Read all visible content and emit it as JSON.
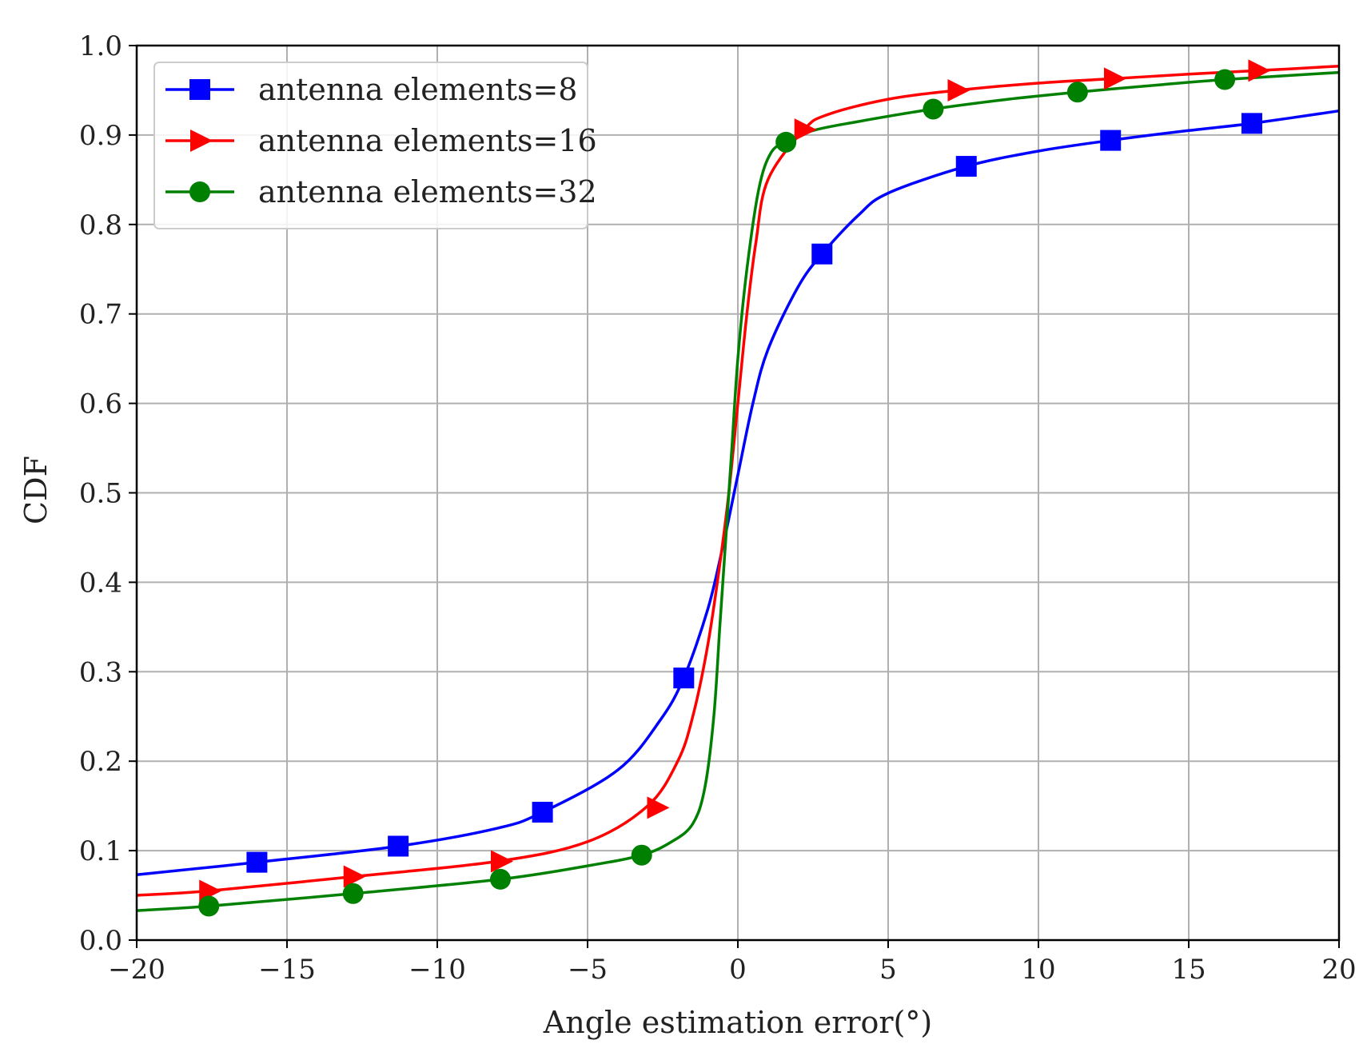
{
  "chart_data": {
    "type": "line",
    "title": "",
    "xlabel": "Angle estimation error(°)",
    "ylabel": "CDF",
    "xlim": [
      -20,
      20
    ],
    "ylim": [
      0.0,
      1.0
    ],
    "xticks": [
      -20,
      -15,
      -10,
      -5,
      0,
      5,
      10,
      15,
      20
    ],
    "xtick_labels": [
      "−20",
      "−15",
      "−10",
      "−5",
      "0",
      "5",
      "10",
      "15",
      "20"
    ],
    "yticks": [
      0.0,
      0.1,
      0.2,
      0.3,
      0.4,
      0.5,
      0.6,
      0.7,
      0.8,
      0.9,
      1.0
    ],
    "ytick_labels": [
      "0.0",
      "0.1",
      "0.2",
      "0.3",
      "0.4",
      "0.5",
      "0.6",
      "0.7",
      "0.8",
      "0.9",
      "1.0"
    ],
    "grid": true,
    "legend_position": "top-left",
    "series": [
      {
        "name": "antenna elements=8",
        "color": "#0000ff",
        "marker": "square",
        "x": [
          -20,
          -16,
          -11.3,
          -8,
          -6.5,
          -4,
          -2.6,
          -1.8,
          -1,
          -0.5,
          0,
          0.5,
          1,
          2,
          2.8,
          4,
          5,
          7.6,
          10,
          12.4,
          15,
          17.1,
          20
        ],
        "y": [
          0.073,
          0.087,
          0.105,
          0.125,
          0.143,
          0.19,
          0.245,
          0.293,
          0.37,
          0.44,
          0.52,
          0.6,
          0.66,
          0.73,
          0.767,
          0.81,
          0.835,
          0.865,
          0.882,
          0.894,
          0.905,
          0.913,
          0.927
        ],
        "marker_x": [
          -16,
          -11.3,
          -6.5,
          -1.8,
          2.8,
          7.6,
          12.4,
          17.1
        ],
        "marker_y": [
          0.087,
          0.105,
          0.143,
          0.293,
          0.767,
          0.865,
          0.894,
          0.913
        ]
      },
      {
        "name": "antenna elements=16",
        "color": "#ff0000",
        "marker": "triangle-right",
        "x": [
          -20,
          -17.6,
          -12.8,
          -8,
          -5,
          -3,
          -2,
          -1.5,
          -1,
          -0.6,
          -0.3,
          0,
          0.3,
          0.6,
          1,
          2.2,
          3,
          5,
          7.3,
          10,
          12.5,
          15,
          17.3,
          20
        ],
        "y": [
          0.05,
          0.055,
          0.071,
          0.088,
          0.11,
          0.15,
          0.2,
          0.25,
          0.33,
          0.42,
          0.5,
          0.6,
          0.7,
          0.78,
          0.85,
          0.906,
          0.923,
          0.94,
          0.95,
          0.958,
          0.963,
          0.968,
          0.972,
          0.977
        ],
        "marker_x": [
          -17.6,
          -12.8,
          -7.9,
          -2.7,
          2.2,
          7.3,
          12.5,
          17.3
        ],
        "marker_y": [
          0.055,
          0.071,
          0.088,
          0.148,
          0.906,
          0.95,
          0.963,
          0.972
        ]
      },
      {
        "name": "antenna elements=32",
        "color": "#008000",
        "marker": "circle",
        "x": [
          -20,
          -17.6,
          -12.8,
          -7.9,
          -5,
          -3.2,
          -2.2,
          -1.5,
          -1.1,
          -0.8,
          -0.6,
          -0.4,
          -0.2,
          0,
          0.3,
          0.7,
          1.1,
          1.6,
          2.5,
          4,
          6.5,
          9,
          11.3,
          14,
          16.2,
          20
        ],
        "y": [
          0.033,
          0.038,
          0.052,
          0.068,
          0.083,
          0.095,
          0.11,
          0.13,
          0.17,
          0.25,
          0.35,
          0.45,
          0.55,
          0.65,
          0.75,
          0.84,
          0.88,
          0.892,
          0.905,
          0.915,
          0.929,
          0.94,
          0.948,
          0.956,
          0.962,
          0.97
        ],
        "marker_x": [
          -17.6,
          -12.8,
          -7.9,
          -3.2,
          1.6,
          6.5,
          11.3,
          16.2
        ],
        "marker_y": [
          0.038,
          0.052,
          0.068,
          0.095,
          0.892,
          0.929,
          0.948,
          0.962
        ]
      }
    ]
  }
}
